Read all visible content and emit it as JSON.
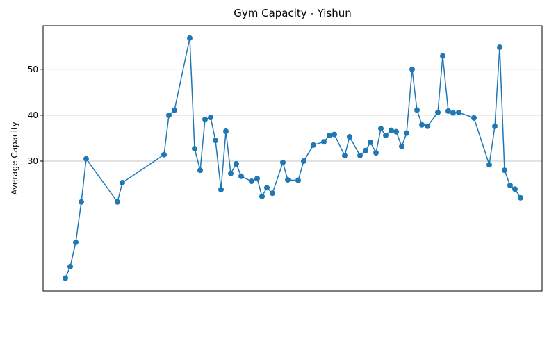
{
  "chart_data": {
    "type": "line",
    "title": "Gym Capacity - Yishun",
    "y_label": "Average Capacity",
    "color": "#1f77b4",
    "grid": true,
    "x": [
      32,
      39,
      47,
      55,
      62,
      107,
      114,
      174,
      181,
      189,
      211,
      218,
      226,
      233,
      241,
      248,
      256,
      263,
      270,
      278,
      285,
      300,
      308,
      315,
      322,
      330,
      345,
      352,
      367,
      375,
      389,
      404,
      412,
      419,
      434,
      441,
      456,
      464,
      471,
      479,
      486,
      493,
      501,
      508,
      516,
      523,
      531,
      538,
      545,
      553,
      568,
      575,
      583,
      590,
      598,
      620,
      642,
      650,
      657,
      664,
      672,
      679,
      687
    ],
    "values": [
      4.5,
      7.0,
      12.3,
      21.1,
      30.5,
      21.1,
      25.3,
      31.4,
      40.0,
      41.1,
      56.8,
      32.7,
      28.0,
      39.1,
      39.5,
      34.5,
      23.8,
      36.5,
      27.3,
      29.4,
      26.7,
      25.6,
      26.2,
      22.3,
      24.2,
      23.0,
      29.7,
      25.9,
      25.8,
      30.0,
      33.5,
      34.2,
      35.6,
      35.8,
      31.2,
      35.3,
      31.2,
      32.3,
      34.1,
      31.8,
      37.1,
      35.6,
      36.7,
      36.4,
      33.2,
      36.1,
      50.0,
      41.1,
      37.9,
      37.6,
      40.6,
      52.9,
      40.9,
      40.5,
      40.6,
      39.4,
      29.2,
      37.6,
      54.8,
      28.0,
      24.7,
      23.9,
      22.0
    ],
    "xlim": [
      0,
      718
    ],
    "ylim": [
      1.7,
      59.5
    ],
    "yticks": [
      30,
      40,
      50
    ]
  }
}
